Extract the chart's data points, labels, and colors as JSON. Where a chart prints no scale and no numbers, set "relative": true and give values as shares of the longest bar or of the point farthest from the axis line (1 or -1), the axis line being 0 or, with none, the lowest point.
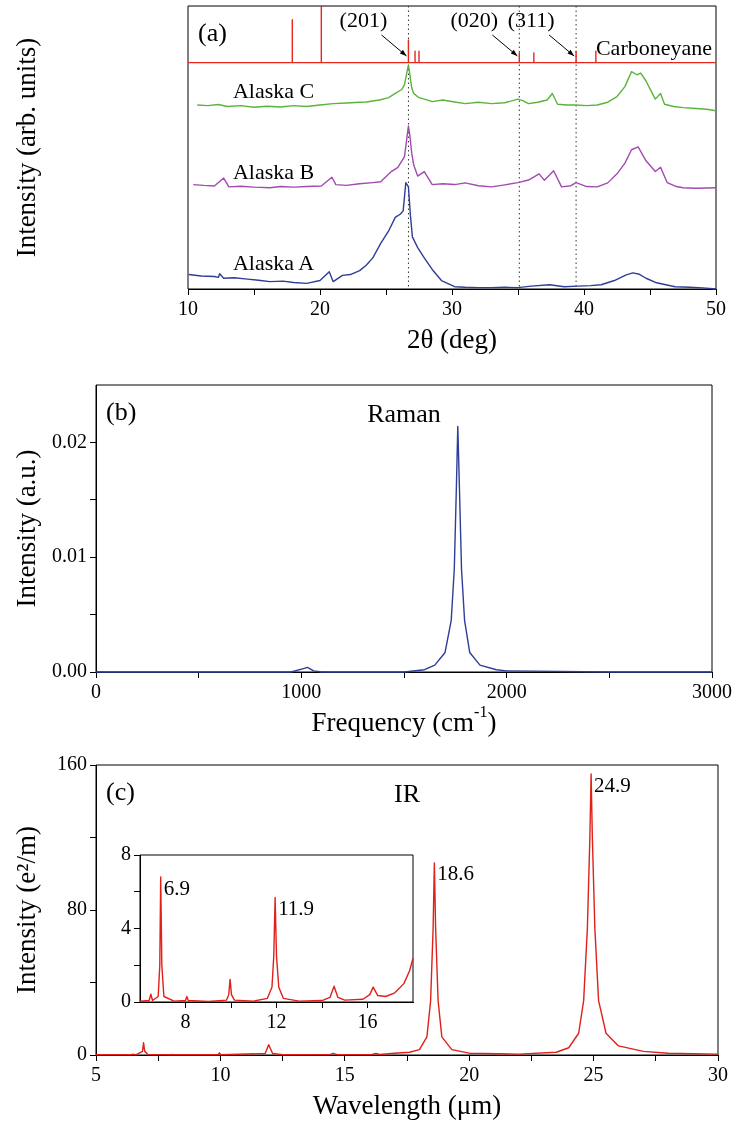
{
  "chart_data": [
    {
      "type": "line",
      "relative": true,
      "xlabel": "2θ (deg)",
      "ylabel": "Intensity (arb. units)",
      "xlim": [
        10,
        50
      ],
      "xticks": [
        10,
        {
          "value": 15,
          "label": null
        },
        20,
        {
          "value": 25,
          "label": null
        },
        30,
        {
          "value": 35,
          "label": null
        },
        40,
        {
          "value": 45,
          "label": null
        },
        50
      ],
      "grid": false,
      "annotations": [
        "(a)",
        {
          "text": "(201)",
          "x": 26.7,
          "y": 0.82
        },
        {
          "text": "(020)",
          "x": 35.1,
          "y": 0.82
        },
        {
          "text": "(311)",
          "x": 39.4,
          "y": 0.82
        }
      ],
      "ref_lines": [
        {
          "axis": "x",
          "value": 26.7,
          "label": null,
          "color": "#333333",
          "line_style": "dotted"
        },
        {
          "axis": "x",
          "value": 35.1,
          "label": null,
          "color": "#333333",
          "line_style": "dotted"
        },
        {
          "axis": "x",
          "value": 39.4,
          "label": null,
          "color": "#333333",
          "line_style": "dotted"
        }
      ],
      "series": [
        {
          "name": "Carboneyane",
          "color": "#e8261e",
          "x": [
            10,
            17.9,
            17.9,
            17.9,
            20.1,
            20.1,
            20.1,
            26.7,
            26.7,
            26.7,
            27.2,
            27.2,
            27.2,
            27.5,
            27.5,
            27.5,
            35.1,
            35.1,
            35.1,
            36.2,
            36.2,
            36.2,
            39.4,
            39.4,
            39.4,
            40.9,
            40.9,
            40.9,
            50
          ],
          "values": [
            0.8,
            0.8,
            0.952,
            0.8,
            0.8,
            1.0,
            0.8,
            0.8,
            0.88,
            0.8,
            0.8,
            0.84,
            0.8,
            0.8,
            0.84,
            0.8,
            0.8,
            0.834,
            0.8,
            0.8,
            0.834,
            0.8,
            0.8,
            0.84,
            0.8,
            0.8,
            0.84,
            0.8,
            0.8
          ]
        },
        {
          "name": "Alaska C",
          "color": "#5ab43a",
          "x": [
            10.7,
            11.5,
            12.3,
            13,
            14,
            15,
            16,
            17,
            18,
            19,
            20,
            21,
            22,
            23,
            23.5,
            24.5,
            25.2,
            25.7,
            26.2,
            26.4,
            26.6,
            26.7,
            26.8,
            26.95,
            27.1,
            27.5,
            27.9,
            28.5,
            29.3,
            30.2,
            31,
            32,
            33,
            34,
            35,
            35.4,
            35.8,
            36.5,
            37.2,
            37.6,
            38,
            38.7,
            39.4,
            40.2,
            41,
            41.8,
            42.5,
            43.1,
            43.6,
            44,
            44.3,
            44.7,
            45,
            45.4,
            45.8,
            46.1,
            46.8,
            47.5,
            48.5,
            49.3,
            50
          ],
          "values": [
            0.65,
            0.648,
            0.652,
            0.645,
            0.648,
            0.642,
            0.646,
            0.643,
            0.648,
            0.645,
            0.65,
            0.655,
            0.657,
            0.66,
            0.661,
            0.668,
            0.676,
            0.691,
            0.705,
            0.722,
            0.77,
            0.791,
            0.76,
            0.71,
            0.691,
            0.676,
            0.671,
            0.662,
            0.668,
            0.661,
            0.655,
            0.66,
            0.655,
            0.658,
            0.671,
            0.665,
            0.655,
            0.66,
            0.668,
            0.691,
            0.653,
            0.65,
            0.65,
            0.648,
            0.65,
            0.66,
            0.68,
            0.715,
            0.768,
            0.757,
            0.763,
            0.735,
            0.707,
            0.671,
            0.691,
            0.653,
            0.645,
            0.641,
            0.638,
            0.635,
            0.63
          ]
        },
        {
          "name": "Alaska B",
          "color": "#a24ab0",
          "x": [
            10.4,
            11.2,
            12,
            12.7,
            13.1,
            14,
            15,
            16.2,
            17,
            18,
            19,
            20.1,
            20.9,
            21.2,
            22,
            23,
            24,
            24.6,
            25.4,
            25.9,
            26.4,
            26.6,
            26.7,
            26.8,
            26.95,
            27.1,
            27.4,
            27.9,
            28.5,
            29.3,
            30.2,
            31,
            32,
            33,
            34,
            35,
            35.8,
            36.6,
            37,
            37.7,
            38.3,
            39,
            39.4,
            40.2,
            41,
            41.8,
            42.5,
            43.1,
            43.6,
            44.1,
            44.7,
            45.4,
            45.8,
            46.3,
            47,
            47.5,
            48.5,
            50
          ],
          "values": [
            0.369,
            0.366,
            0.364,
            0.392,
            0.361,
            0.363,
            0.36,
            0.358,
            0.362,
            0.36,
            0.362,
            0.364,
            0.395,
            0.369,
            0.366,
            0.372,
            0.376,
            0.379,
            0.415,
            0.43,
            0.468,
            0.54,
            0.576,
            0.545,
            0.48,
            0.438,
            0.399,
            0.415,
            0.369,
            0.372,
            0.369,
            0.375,
            0.365,
            0.361,
            0.368,
            0.376,
            0.385,
            0.407,
            0.384,
            0.418,
            0.361,
            0.365,
            0.376,
            0.362,
            0.361,
            0.375,
            0.407,
            0.445,
            0.492,
            0.502,
            0.453,
            0.415,
            0.43,
            0.376,
            0.362,
            0.358,
            0.356,
            0.358
          ]
        },
        {
          "name": "Alaska A",
          "color": "#2e3e98",
          "x": [
            10.05,
            11,
            12,
            12.3,
            12.4,
            12.7,
            13.5,
            14.5,
            15.5,
            16.2,
            17.2,
            18,
            19,
            20,
            20.7,
            21,
            21.7,
            22.3,
            23,
            23.5,
            24,
            24.6,
            25.2,
            25.7,
            26.1,
            26.3,
            26.5,
            26.7,
            26.85,
            27,
            27.4,
            27.9,
            28.5,
            29.2,
            30.2,
            31,
            32,
            33,
            34,
            35,
            36,
            37.4,
            38.5,
            39.5,
            40.5,
            41.3,
            42.3,
            43.2,
            43.7,
            44.2,
            44.7,
            45.5,
            46.9,
            48,
            49,
            50
          ],
          "values": [
            0.051,
            0.046,
            0.044,
            0.041,
            0.054,
            0.038,
            0.04,
            0.035,
            0.03,
            0.026,
            0.028,
            0.023,
            0.02,
            0.03,
            0.061,
            0.026,
            0.048,
            0.051,
            0.065,
            0.084,
            0.11,
            0.161,
            0.205,
            0.253,
            0.265,
            0.276,
            0.376,
            0.361,
            0.26,
            0.184,
            0.146,
            0.11,
            0.069,
            0.03,
            0.008,
            0.006,
            0.005,
            0.005,
            0.006,
            0.005,
            0.01,
            0.015,
            0.008,
            0.01,
            0.012,
            0.015,
            0.03,
            0.05,
            0.057,
            0.052,
            0.038,
            0.022,
            0.008,
            0.006,
            0.004,
            0.0
          ]
        }
      ]
    },
    {
      "type": "line",
      "title": "Raman",
      "xlabel": "Frequency (cm$^{-1}$)",
      "ylabel": "Intensity (a.u.)",
      "xlim": [
        0,
        3000
      ],
      "xticks": [
        0,
        {
          "value": 500,
          "label": null
        },
        1000,
        {
          "value": 1500,
          "label": null
        },
        2000,
        {
          "value": 2500,
          "label": null
        },
        3000
      ],
      "ylim": [
        0,
        0.025
      ],
      "yticks": [
        {
          "value": 0,
          "label": "0.00"
        },
        {
          "value": 0.005,
          "label": null
        },
        {
          "value": 0.01,
          "label": "0.01"
        },
        {
          "value": 0.015,
          "label": null
        },
        {
          "value": 0.02,
          "label": "0.02"
        }
      ],
      "grid": false,
      "annotations": [
        "(b)"
      ],
      "series": [
        {
          "color": "#2e3e98",
          "x": [
            0,
            500,
            950,
            1010,
            1030,
            1060,
            1100,
            1500,
            1600,
            1650,
            1700,
            1730,
            1745,
            1755,
            1762,
            1770,
            1780,
            1795,
            1820,
            1870,
            1950,
            2000,
            2500,
            3000
          ],
          "values": [
            0,
            0,
            0,
            0.0003,
            0.0004,
            0.0001,
            0,
            0,
            0.0002,
            0.0006,
            0.0017,
            0.0045,
            0.009,
            0.016,
            0.0214,
            0.016,
            0.009,
            0.0045,
            0.0017,
            0.0006,
            0.0002,
            0.0001,
            0,
            0
          ]
        }
      ]
    },
    {
      "type": "line",
      "title": "IR",
      "xlabel": "Wavelength (μm)",
      "ylabel": "Intensity (e²/m)",
      "xlim": [
        5,
        30
      ],
      "xticks": [
        5,
        {
          "value": 7.5,
          "label": null
        },
        10,
        {
          "value": 12.5,
          "label": null
        },
        15,
        {
          "value": 17.5,
          "label": null
        },
        20,
        {
          "value": 22.5,
          "label": null
        },
        25,
        {
          "value": 27.5,
          "label": null
        },
        30
      ],
      "ylim": [
        0,
        160
      ],
      "yticks": [
        0,
        {
          "value": 40,
          "label": null
        },
        80,
        {
          "value": 120,
          "label": null
        },
        160
      ],
      "grid": false,
      "annotations": [
        "(c)",
        {
          "text": "18.6",
          "x": 18.6,
          "y": 106
        },
        {
          "text": "24.9",
          "x": 24.9,
          "y": 155
        }
      ],
      "series": [
        {
          "color": "#e0201a",
          "x": [
            5,
            6.4,
            6.48,
            6.6,
            6.87,
            6.91,
            6.96,
            7.1,
            8,
            8.06,
            8.12,
            9.9,
            9.96,
            10.02,
            11.8,
            11.94,
            12.1,
            12.5,
            14.4,
            14.53,
            14.7,
            16.1,
            16.25,
            16.4,
            17,
            17.6,
            18,
            18.3,
            18.45,
            18.55,
            18.6,
            18.65,
            18.75,
            18.9,
            19.3,
            20,
            22,
            23.5,
            24,
            24.4,
            24.6,
            24.75,
            24.85,
            24.9,
            24.95,
            25.05,
            25.2,
            25.5,
            26,
            27,
            28,
            30
          ],
          "values": [
            0.1,
            0.1,
            0.4,
            0.1,
            2,
            6.8,
            2,
            0.2,
            0.1,
            0.3,
            0.1,
            0.1,
            1.2,
            0.1,
            0.8,
            5.7,
            0.8,
            0.1,
            0.2,
            0.9,
            0.2,
            0.3,
            0.8,
            0.3,
            1,
            1.5,
            3,
            10,
            30,
            70,
            106,
            70,
            30,
            10,
            3,
            1,
            0.5,
            1.5,
            4,
            12,
            30,
            70,
            120,
            155,
            120,
            70,
            30,
            12,
            5,
            2,
            1,
            0.5
          ]
        }
      ]
    },
    {
      "type": "line",
      "xlim": [
        6,
        18
      ],
      "xticks": [
        8,
        {
          "value": 10,
          "label": null
        },
        12,
        {
          "value": 14,
          "label": null
        },
        16
      ],
      "ylim": [
        0,
        8
      ],
      "yticks": [
        0,
        {
          "value": 2,
          "label": null
        },
        4,
        {
          "value": 6,
          "label": null
        },
        8
      ],
      "grid": false,
      "annotations": [
        {
          "text": "6.9",
          "x": 6.91,
          "y": 6.8
        },
        {
          "text": "11.9",
          "x": 11.94,
          "y": 5.69
        }
      ],
      "series": [
        {
          "color": "#e0201a",
          "x": [
            6,
            6.4,
            6.48,
            6.55,
            6.8,
            6.87,
            6.91,
            6.96,
            7.05,
            7.5,
            8,
            8.06,
            8.12,
            9,
            9.8,
            9.9,
            9.96,
            10.02,
            10.15,
            11,
            11.6,
            11.8,
            11.88,
            11.94,
            12,
            12.1,
            12.3,
            13,
            14,
            14.35,
            14.53,
            14.7,
            15,
            15.8,
            16.1,
            16.25,
            16.45,
            16.8,
            17.2,
            17.6,
            17.85,
            18
          ],
          "values": [
            0.05,
            0.08,
            0.42,
            0.08,
            0.3,
            2,
            6.8,
            2,
            0.3,
            0.05,
            0.08,
            0.3,
            0.08,
            0.03,
            0.1,
            0.4,
            1.23,
            0.4,
            0.1,
            0.05,
            0.2,
            0.8,
            2.5,
            5.69,
            2.5,
            0.8,
            0.2,
            0.05,
            0.08,
            0.25,
            0.86,
            0.25,
            0.1,
            0.15,
            0.4,
            0.81,
            0.35,
            0.3,
            0.5,
            1,
            1.7,
            2.38
          ]
        }
      ]
    }
  ]
}
